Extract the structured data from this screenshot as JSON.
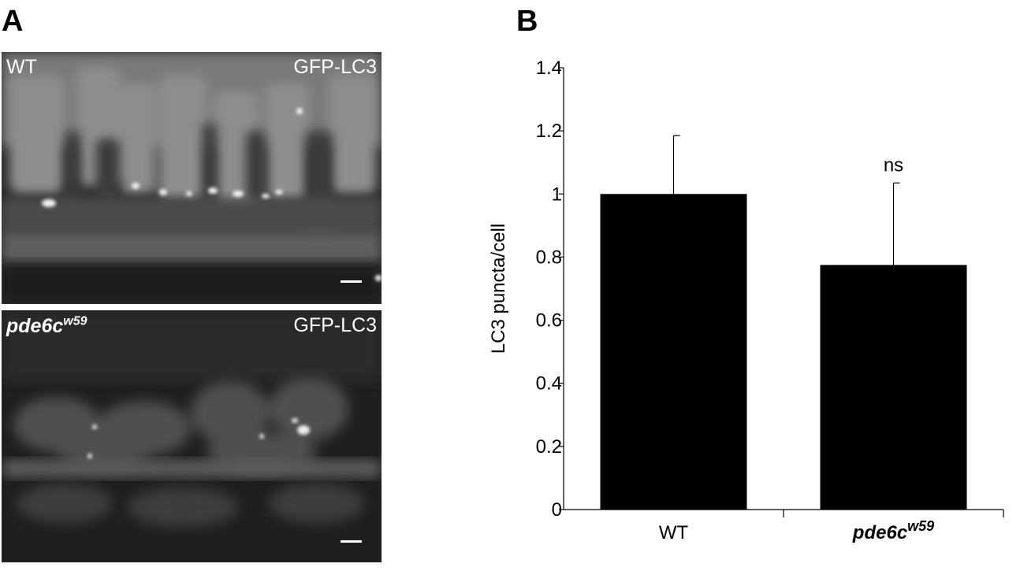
{
  "panel_a": {
    "letter": "A",
    "top": {
      "label_left": "WT",
      "label_right": "GFP-LC3"
    },
    "bottom": {
      "genotype_base": "pde6c",
      "genotype_sup": "w59",
      "label_right": "GFP-LC3"
    }
  },
  "panel_b": {
    "letter": "B"
  },
  "chart_data": {
    "type": "bar",
    "ylabel": "LC3 puncta/cell",
    "ylim": [
      0,
      1.4
    ],
    "yticks": [
      0,
      0.2,
      0.4,
      0.6,
      0.8,
      1,
      1.2,
      1.4
    ],
    "ytick_labels": [
      "0",
      "0.2",
      "0.4",
      "0.6",
      "0.8",
      "1",
      "1.2",
      "1.4"
    ],
    "categories": [
      "WT",
      "pde6c"
    ],
    "category_superscripts": [
      "",
      "w59"
    ],
    "category_italic": [
      false,
      true
    ],
    "values": [
      1.0,
      0.775
    ],
    "error_upper": [
      1.185,
      1.035
    ],
    "annotations": [
      "",
      "ns"
    ],
    "bar_color": "#000000",
    "grid": false,
    "legend": "none"
  }
}
